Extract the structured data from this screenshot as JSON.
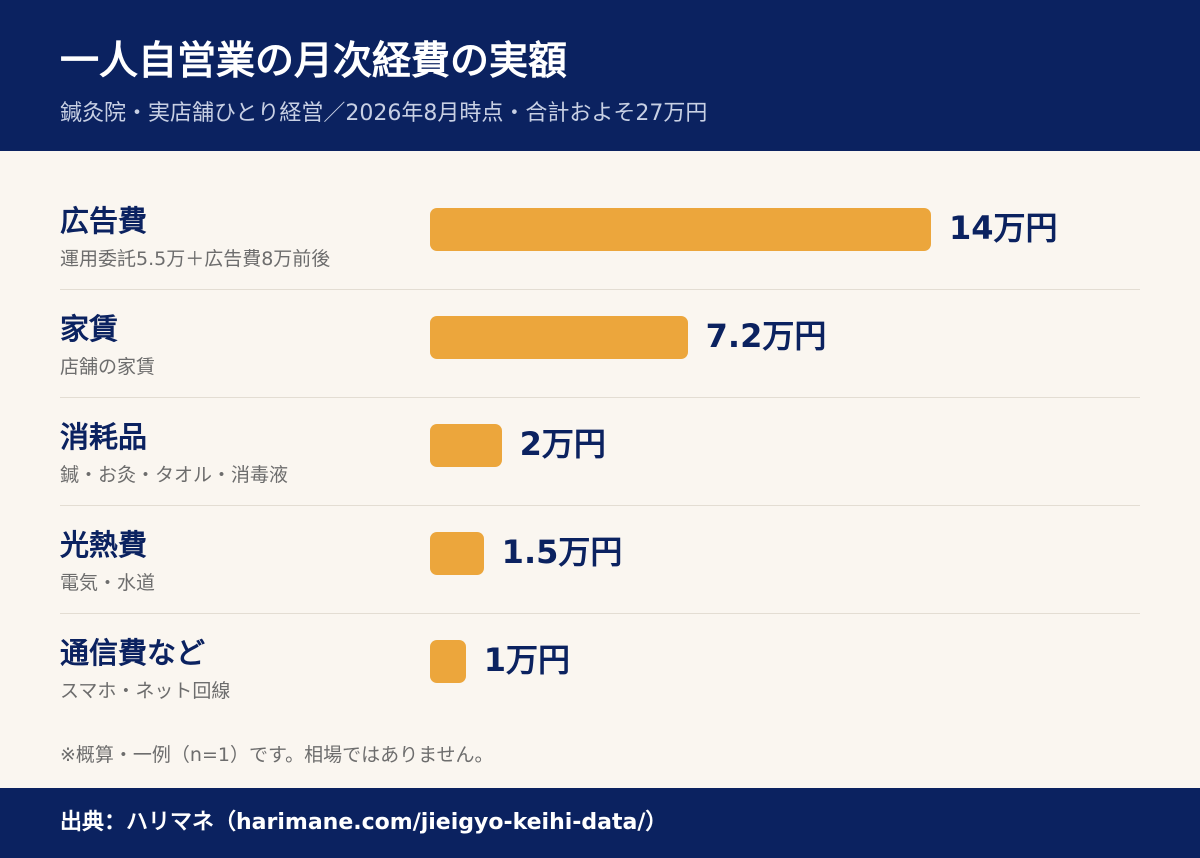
{
  "chart_data": {
    "type": "bar",
    "orientation": "horizontal",
    "title": "一人自営業の月次経費の実額",
    "subtitle": "鍼灸院・実店舗ひとり経営／2026年8月時点・合計およそ27万円",
    "categories": [
      "広告費",
      "家賃",
      "消耗品",
      "光熱費",
      "通信費など"
    ],
    "notes": [
      "運用委託5.5万＋広告費8万前後",
      "店舗の家賃",
      "鍼・お灸・タオル・消毒液",
      "電気・水道",
      "スマホ・ネット回線"
    ],
    "values": [
      14,
      7.2,
      2,
      1.5,
      1
    ],
    "value_labels": [
      "14万円",
      "7.2万円",
      "2万円",
      "1.5万円",
      "1万円"
    ],
    "unit": "万円",
    "xlim": [
      0,
      14
    ],
    "grid": false,
    "legend": "none",
    "footnote": "※概算・一例（n=1）です。相場ではありません。",
    "source": "出典：ハリマネ（harimane.com/jieigyo-keihi-data/）"
  },
  "colors": {
    "header_bg": "#0b2260",
    "bar": "#eca63c",
    "background": "#faf6f0",
    "label_text": "#0b2260",
    "note_text": "#6d6d6d"
  }
}
